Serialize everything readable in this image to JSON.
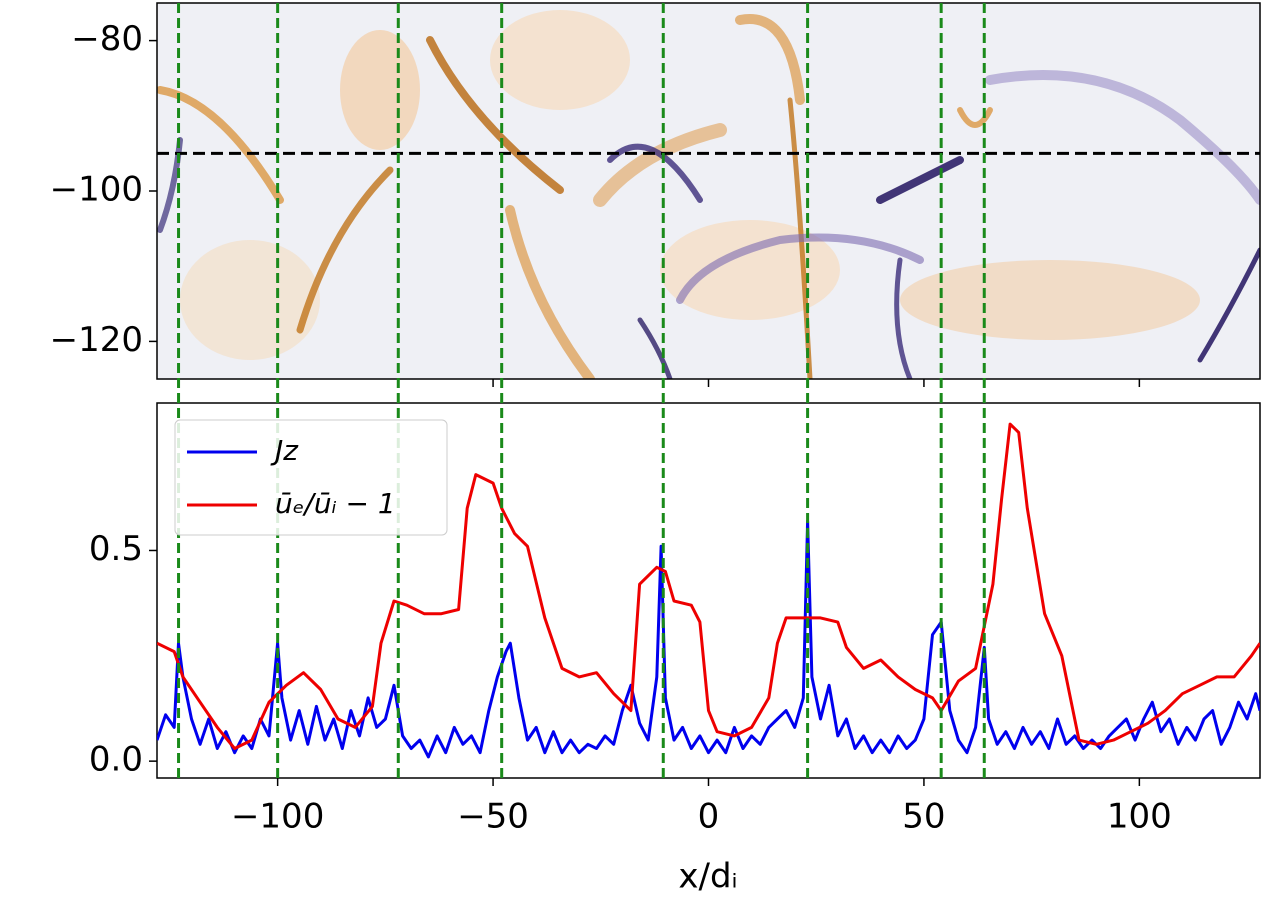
{
  "chart_data": [
    {
      "type": "heatmap",
      "ylim": [
        -125,
        -75
      ],
      "yticks": [
        {
          "value": -80,
          "label": "−80"
        },
        {
          "value": -100,
          "label": "−100"
        },
        {
          "value": -120,
          "label": "−120"
        }
      ],
      "hline": -95,
      "hline_color": "#000000"
    },
    {
      "type": "line",
      "xlabel": "x/dᵢ",
      "xlim": [
        -128,
        128
      ],
      "ylim": [
        -0.04,
        0.85
      ],
      "xticks": [
        {
          "value": -100,
          "label": "−100"
        },
        {
          "value": -50,
          "label": "−50"
        },
        {
          "value": 0,
          "label": "0"
        },
        {
          "value": 50,
          "label": "50"
        },
        {
          "value": 100,
          "label": "100"
        }
      ],
      "yticks": [
        {
          "value": 0,
          "label": "0.0"
        },
        {
          "value": 0.5,
          "label": "0.5"
        }
      ],
      "vlines": [
        -123,
        -100,
        -72,
        -48,
        -10.5,
        23,
        54,
        64
      ],
      "vline_color": "#1a8a1a",
      "legend": "upper left",
      "series": [
        {
          "name": "Jz",
          "color": "#0000ee",
          "x": [
            -128,
            -126,
            -124,
            -123,
            -122,
            -120,
            -118,
            -116,
            -114,
            -112,
            -110,
            -108,
            -106,
            -104,
            -102,
            -100,
            -99,
            -97,
            -95,
            -93,
            -91,
            -89,
            -87,
            -85,
            -83,
            -81,
            -79,
            -77,
            -75,
            -73,
            -71,
            -69,
            -67,
            -65,
            -63,
            -61,
            -59,
            -57,
            -55,
            -53,
            -51,
            -49,
            -47,
            -46,
            -44,
            -42,
            -40,
            -38,
            -36,
            -34,
            -32,
            -30,
            -28,
            -26,
            -24,
            -22,
            -20,
            -18,
            -16,
            -14,
            -12,
            -11,
            -10,
            -8,
            -6,
            -4,
            -2,
            0,
            2,
            4,
            6,
            8,
            10,
            12,
            14,
            16,
            18,
            20,
            22,
            23,
            24,
            26,
            28,
            30,
            32,
            34,
            36,
            38,
            40,
            42,
            44,
            46,
            48,
            50,
            52,
            54,
            56,
            58,
            60,
            62,
            64,
            65,
            67,
            69,
            71,
            73,
            75,
            77,
            79,
            81,
            83,
            85,
            87,
            89,
            91,
            93,
            95,
            97,
            99,
            101,
            103,
            105,
            107,
            109,
            111,
            113,
            115,
            117,
            119,
            121,
            123,
            125,
            127,
            128
          ],
          "values": [
            0.05,
            0.11,
            0.08,
            0.28,
            0.2,
            0.1,
            0.04,
            0.1,
            0.03,
            0.07,
            0.02,
            0.06,
            0.03,
            0.1,
            0.06,
            0.28,
            0.15,
            0.05,
            0.12,
            0.04,
            0.13,
            0.05,
            0.1,
            0.03,
            0.12,
            0.06,
            0.15,
            0.08,
            0.1,
            0.18,
            0.06,
            0.03,
            0.05,
            0.01,
            0.06,
            0.02,
            0.08,
            0.04,
            0.06,
            0.02,
            0.12,
            0.2,
            0.26,
            0.28,
            0.15,
            0.05,
            0.08,
            0.02,
            0.07,
            0.02,
            0.05,
            0.02,
            0.04,
            0.03,
            0.06,
            0.04,
            0.12,
            0.18,
            0.09,
            0.05,
            0.2,
            0.51,
            0.15,
            0.05,
            0.08,
            0.03,
            0.06,
            0.02,
            0.05,
            0.02,
            0.08,
            0.03,
            0.06,
            0.04,
            0.08,
            0.1,
            0.12,
            0.08,
            0.15,
            0.57,
            0.2,
            0.1,
            0.18,
            0.06,
            0.1,
            0.03,
            0.06,
            0.02,
            0.05,
            0.02,
            0.06,
            0.03,
            0.05,
            0.1,
            0.3,
            0.33,
            0.12,
            0.05,
            0.02,
            0.08,
            0.27,
            0.1,
            0.04,
            0.07,
            0.03,
            0.08,
            0.04,
            0.07,
            0.03,
            0.1,
            0.04,
            0.06,
            0.03,
            0.05,
            0.03,
            0.06,
            0.08,
            0.1,
            0.05,
            0.1,
            0.14,
            0.07,
            0.1,
            0.04,
            0.08,
            0.05,
            0.1,
            0.12,
            0.04,
            0.08,
            0.14,
            0.1,
            0.16,
            0.12
          ]
        },
        {
          "name": "ūₑ/ūᵢ − 1",
          "color": "#ee0000",
          "x": [
            -128,
            -124,
            -122,
            -118,
            -114,
            -110,
            -106,
            -102,
            -98,
            -94,
            -90,
            -86,
            -82,
            -78,
            -76,
            -73,
            -70,
            -66,
            -62,
            -58,
            -56,
            -54,
            -50,
            -48,
            -45,
            -42,
            -38,
            -34,
            -30,
            -26,
            -22,
            -18,
            -16,
            -12,
            -10,
            -8,
            -4,
            -2,
            0,
            2,
            6,
            10,
            14,
            16,
            18,
            22,
            26,
            30,
            32,
            36,
            40,
            44,
            48,
            52,
            54,
            58,
            62,
            66,
            68,
            70,
            72,
            74,
            78,
            82,
            86,
            90,
            94,
            98,
            102,
            106,
            110,
            114,
            118,
            122,
            126,
            128
          ],
          "values": [
            0.28,
            0.26,
            0.2,
            0.14,
            0.08,
            0.03,
            0.05,
            0.14,
            0.18,
            0.21,
            0.17,
            0.1,
            0.08,
            0.13,
            0.28,
            0.38,
            0.37,
            0.35,
            0.35,
            0.36,
            0.6,
            0.68,
            0.66,
            0.6,
            0.54,
            0.51,
            0.34,
            0.22,
            0.2,
            0.21,
            0.16,
            0.12,
            0.42,
            0.46,
            0.45,
            0.38,
            0.37,
            0.33,
            0.12,
            0.07,
            0.06,
            0.08,
            0.15,
            0.28,
            0.34,
            0.34,
            0.34,
            0.33,
            0.27,
            0.22,
            0.24,
            0.2,
            0.17,
            0.15,
            0.12,
            0.19,
            0.22,
            0.42,
            0.62,
            0.8,
            0.78,
            0.6,
            0.35,
            0.25,
            0.05,
            0.04,
            0.05,
            0.07,
            0.09,
            0.12,
            0.16,
            0.18,
            0.2,
            0.2,
            0.25,
            0.28
          ]
        }
      ]
    }
  ]
}
